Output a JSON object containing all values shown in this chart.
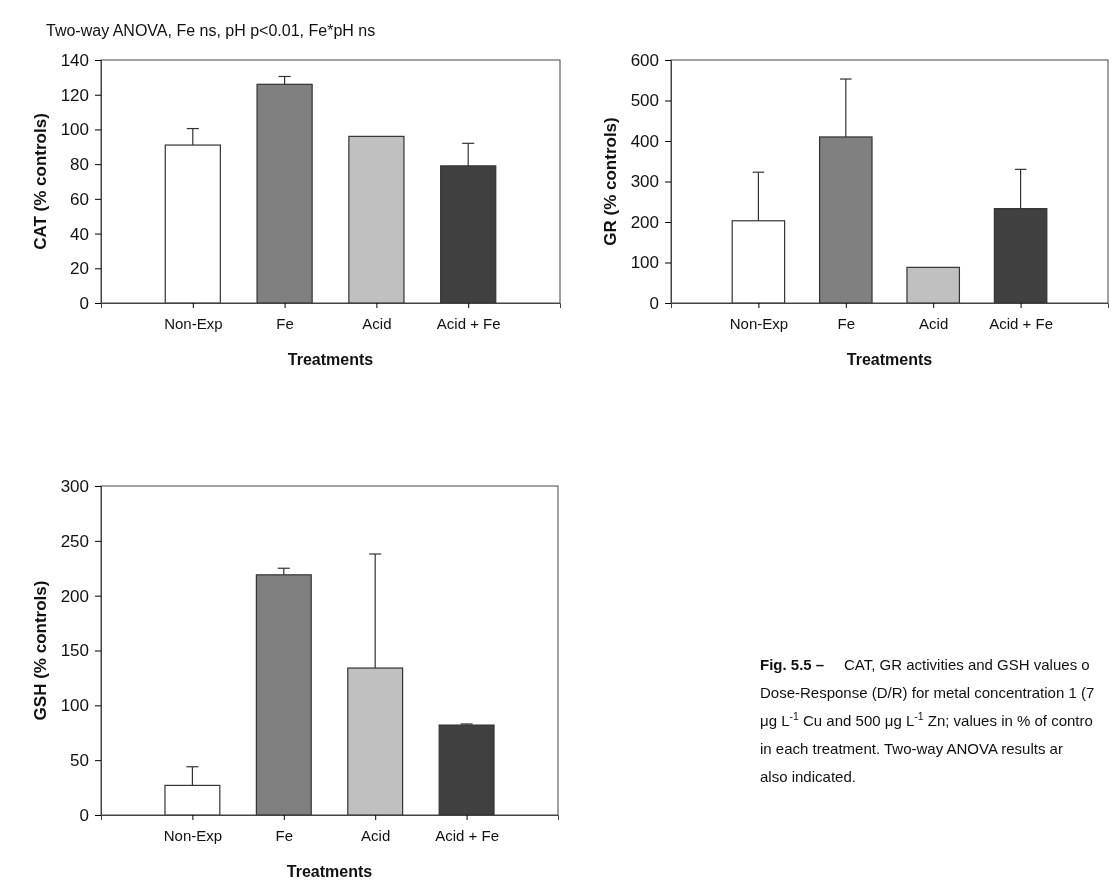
{
  "chart_data": [
    {
      "type": "bar",
      "title": "Two-way ANOVA, Fe ns, pH p<0.01, Fe*pH ns",
      "categories": [
        "Non-Exp",
        "Fe",
        "Acid",
        "Acid + Fe"
      ],
      "values": [
        91,
        126,
        96,
        79
      ],
      "colors": [
        "#ffffff",
        "#808080",
        "#c0c0c0",
        "#404040"
      ],
      "errors": [
        [
          91,
          100.5
        ],
        [
          126,
          130.5
        ],
        null,
        [
          79,
          92
        ]
      ],
      "ylim": [
        0,
        140
      ],
      "yticks": [
        0,
        20,
        40,
        60,
        80,
        100,
        120,
        140
      ],
      "xlabel": "Treatments",
      "ylabel": "CAT (% controls)"
    },
    {
      "type": "bar",
      "categories": [
        "Non-Exp",
        "Fe",
        "Acid",
        "Acid + Fe"
      ],
      "values": [
        203,
        410,
        88,
        233
      ],
      "colors": [
        "#ffffff",
        "#808080",
        "#c0c0c0",
        "#404040"
      ],
      "errors": [
        [
          203,
          323
        ],
        [
          410,
          553
        ],
        null,
        [
          233,
          330
        ]
      ],
      "ylim": [
        0,
        600
      ],
      "yticks": [
        0,
        100,
        200,
        300,
        400,
        500,
        600
      ],
      "xlabel": "Treatments",
      "ylabel": "GR (% controls)"
    },
    {
      "type": "bar",
      "categories": [
        "Non-Exp",
        "Fe",
        "Acid",
        "Acid + Fe"
      ],
      "values": [
        27,
        219,
        134,
        82
      ],
      "colors": [
        "#ffffff",
        "#808080",
        "#c0c0c0",
        "#404040"
      ],
      "errors": [
        [
          27,
          44
        ],
        [
          219,
          225
        ],
        [
          134,
          238
        ],
        [
          82,
          83
        ]
      ],
      "ylim": [
        0,
        300
      ],
      "yticks": [
        0,
        50,
        100,
        150,
        200,
        250,
        300
      ],
      "xlabel": "Treatments",
      "ylabel": "GSH (% controls)",
      "annotations": [
        "Fig. 5.5 –",
        "CAT, GR activities and GSH values o",
        "Dose-Response (D/R) for metal concentration 1 (7",
        "μg L$^{-1}$ Cu and 500 μg L$^{-1}$ Zn; values in % of contro",
        "in each treatment. Two-way ANOVA results ar",
        "also indicated."
      ]
    }
  ]
}
